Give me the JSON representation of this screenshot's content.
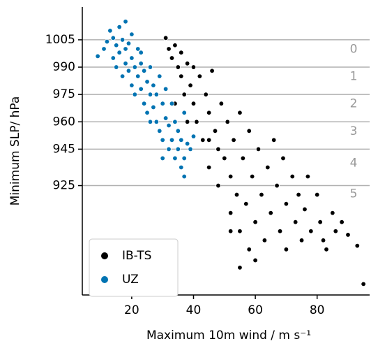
{
  "chart_data": {
    "type": "scatter",
    "xlabel": "Maximum 10m wind / m s⁻¹",
    "ylabel": "Minimum SLP/ hPa",
    "xlim": [
      4,
      97
    ],
    "ylim": [
      865,
      1023
    ],
    "xticks": [
      20,
      40,
      60,
      80
    ],
    "yticks": [
      925,
      945,
      960,
      975,
      990,
      1005
    ],
    "grid": "y",
    "category_labels": [
      "0",
      "1",
      "2",
      "3",
      "4",
      "5"
    ],
    "legend": "lower left",
    "series": [
      {
        "name": "IB-TS",
        "color": "#000000",
        "x": [
          31,
          32,
          33,
          34,
          35,
          36,
          36,
          37,
          38,
          39,
          40,
          40,
          41,
          42,
          43,
          44,
          45,
          45,
          46,
          47,
          48,
          48,
          49,
          50,
          51,
          52,
          52,
          53,
          54,
          55,
          55,
          56,
          57,
          58,
          58,
          59,
          60,
          61,
          62,
          63,
          64,
          65,
          66,
          67,
          68,
          69,
          70,
          70,
          72,
          73,
          74,
          75,
          76,
          77,
          78,
          80,
          81,
          82,
          83,
          85,
          86,
          88,
          90,
          93,
          95,
          55,
          60,
          52,
          45,
          38,
          34
        ],
        "values": [
          1006,
          1000,
          995,
          1002,
          990,
          985,
          998,
          975,
          992,
          980,
          970,
          990,
          960,
          985,
          950,
          975,
          965,
          935,
          988,
          955,
          945,
          925,
          970,
          940,
          960,
          930,
          910,
          950,
          920,
          965,
          900,
          940,
          915,
          955,
          890,
          930,
          905,
          945,
          920,
          895,
          935,
          910,
          950,
          925,
          900,
          940,
          915,
          890,
          930,
          905,
          920,
          895,
          912,
          930,
          900,
          920,
          905,
          895,
          890,
          910,
          900,
          905,
          898,
          892,
          871,
          880,
          884,
          900,
          950,
          960,
          970
        ]
      },
      {
        "name": "UZ",
        "color": "#0173b2",
        "x": [
          9,
          11,
          12,
          13,
          14,
          14,
          15,
          15,
          16,
          16,
          17,
          17,
          18,
          18,
          19,
          19,
          20,
          20,
          21,
          21,
          22,
          22,
          23,
          23,
          24,
          24,
          25,
          25,
          26,
          26,
          27,
          27,
          28,
          28,
          29,
          29,
          30,
          30,
          31,
          31,
          32,
          32,
          33,
          33,
          34,
          34,
          35,
          35,
          36,
          36,
          37,
          37,
          38,
          39,
          40,
          37,
          18,
          20,
          23,
          26,
          30
        ],
        "values": [
          996,
          1000,
          1004,
          1010,
          1006,
          995,
          1002,
          990,
          1012,
          998,
          985,
          1005,
          1000,
          992,
          988,
          1003,
          995,
          980,
          990,
          975,
          1000,
          985,
          978,
          992,
          970,
          988,
          982,
          965,
          975,
          990,
          968,
          980,
          960,
          975,
          985,
          955,
          970,
          950,
          962,
          978,
          945,
          958,
          970,
          950,
          940,
          960,
          955,
          945,
          935,
          950,
          965,
          940,
          948,
          945,
          952,
          930,
          1015,
          1008,
          998,
          960,
          940
        ]
      }
    ]
  }
}
